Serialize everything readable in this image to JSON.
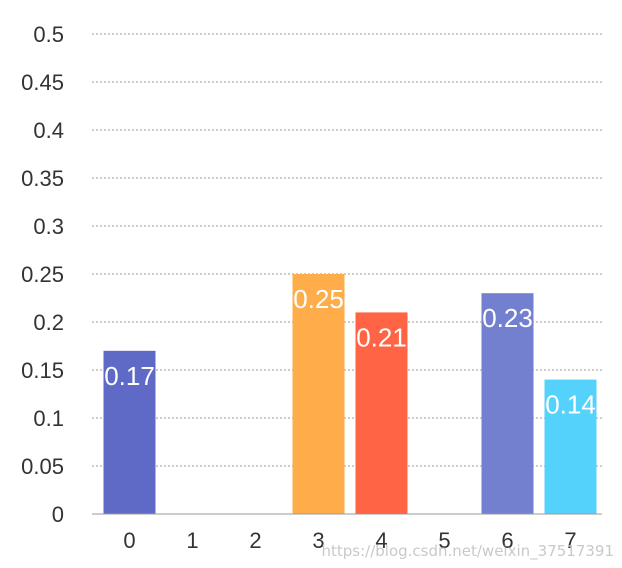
{
  "chart_data": {
    "type": "bar",
    "title": "",
    "xlabel": "",
    "ylabel": "",
    "categories": [
      "0",
      "1",
      "2",
      "3",
      "4",
      "5",
      "6",
      "7"
    ],
    "values": [
      0.17,
      0,
      0,
      0.25,
      0.21,
      0,
      0.23,
      0.14
    ],
    "data_labels": [
      "0.17",
      "",
      "",
      "0.25",
      "0.21",
      "",
      "0.23",
      "0.14"
    ],
    "colors": [
      "#5f6ac6",
      "#5f6ac6",
      "#5f6ac6",
      "#ffad4a",
      "#ff6444",
      "#5f6ac6",
      "#7380cf",
      "#55d2fc"
    ],
    "ylim": [
      0,
      0.5
    ],
    "yticks": [
      "0",
      "0.05",
      "0.1",
      "0.15",
      "0.2",
      "0.25",
      "0.3",
      "0.35",
      "0.4",
      "0.45",
      "0.5"
    ],
    "grid": true
  },
  "watermark": "https://blog.csdn.net/weixin_37517391"
}
